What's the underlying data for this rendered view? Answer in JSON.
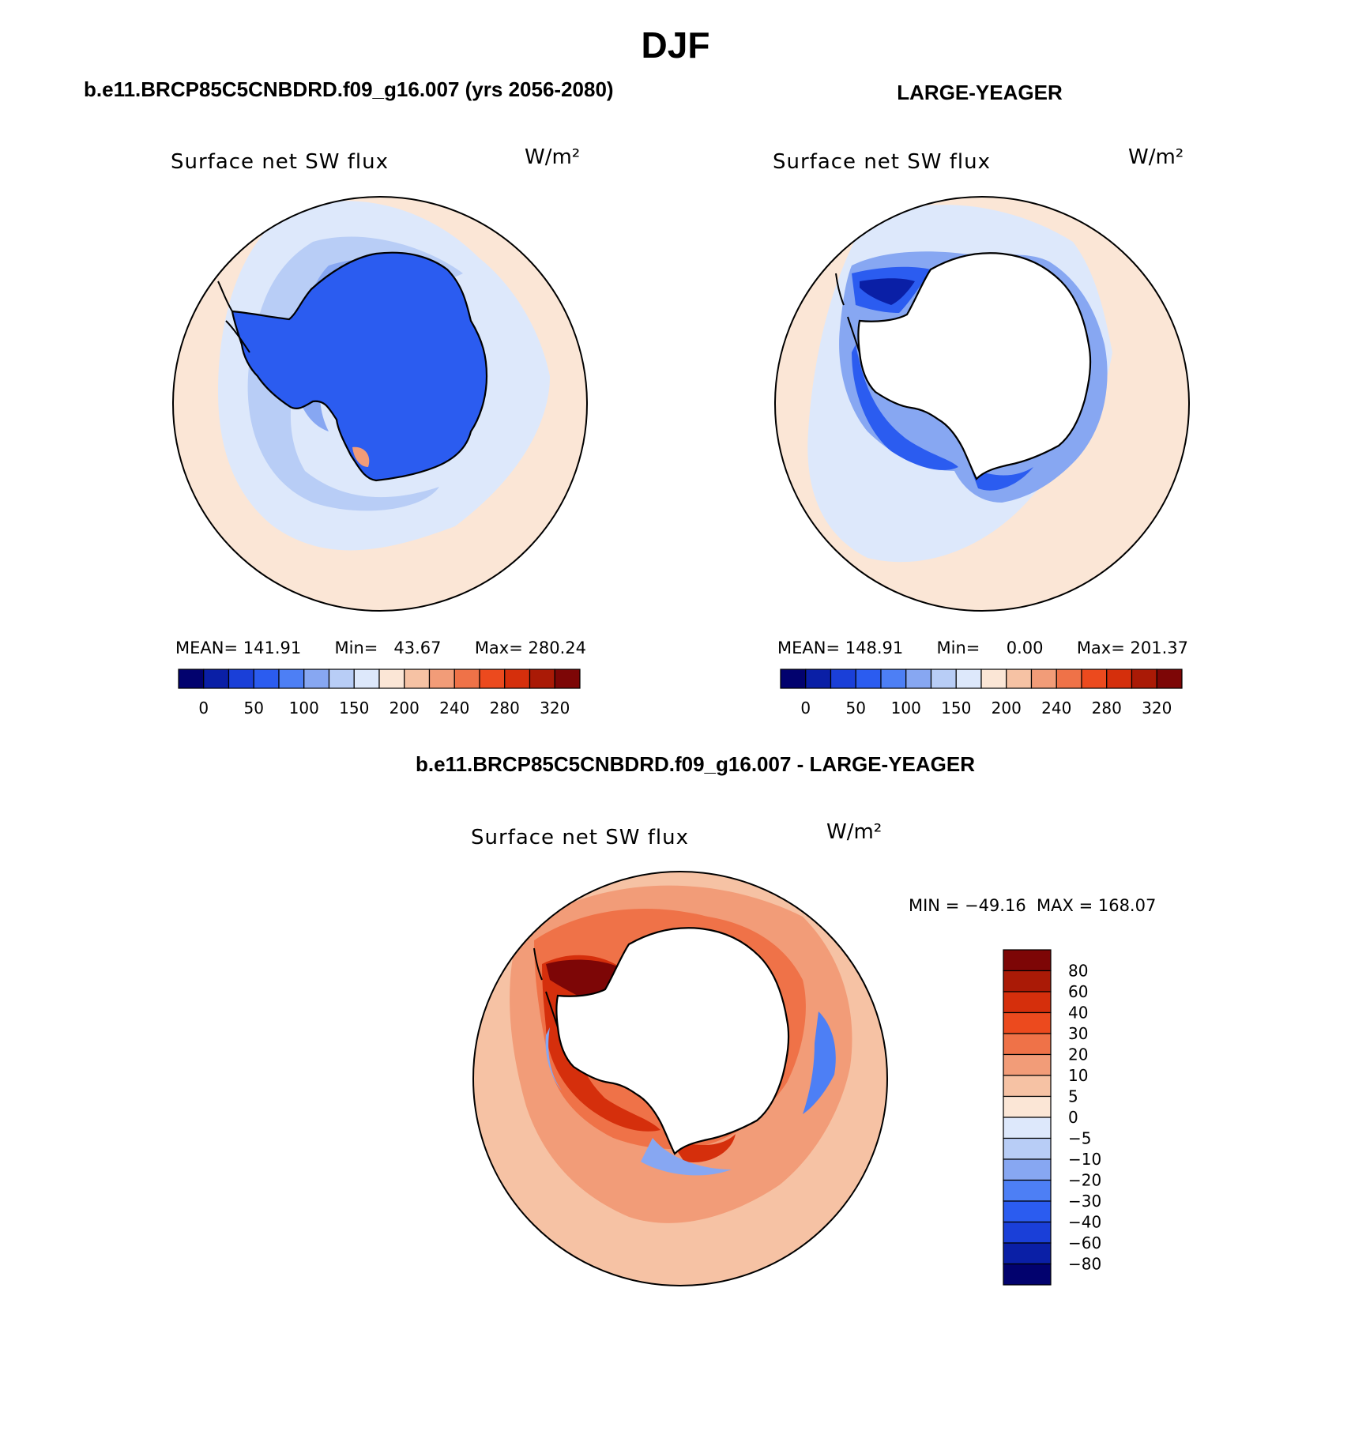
{
  "season_title": "DJF",
  "panels": {
    "case": {
      "heading": "b.e11.BRCP85C5CNBDRD.f09_g16.007 (yrs 2056-2080)",
      "variable": "Surface net SW flux",
      "units": "W/m²",
      "stats": {
        "mean_label": "MEAN=",
        "mean": "141.91",
        "min_label": "Min=",
        "min": "43.67",
        "max_label": "Max=",
        "max": "280.24"
      }
    },
    "obs": {
      "heading": "LARGE-YEAGER",
      "variable": "Surface net SW flux",
      "units": "W/m²",
      "stats": {
        "mean_label": "MEAN=",
        "mean": "148.91",
        "min_label": "Min=",
        "min": "0.00",
        "max_label": "Max=",
        "max": "201.37"
      }
    },
    "diff": {
      "heading": "b.e11.BRCP85C5CNBDRD.f09_g16.007 - LARGE-YEAGER",
      "variable": "Surface net SW flux",
      "units": "W/m²",
      "minmax": "MIN = −49.16  MAX = 168.07"
    }
  },
  "colorbar_abs": {
    "ticks": [
      "0",
      "50",
      "100",
      "150",
      "200",
      "240",
      "280",
      "320"
    ],
    "colors": [
      "#02026e",
      "#0a1fa6",
      "#1a3fd8",
      "#2b5cf0",
      "#4d7ff5",
      "#87a7f2",
      "#b8cdf6",
      "#dde8fb",
      "#fbe6d6",
      "#f6c2a4",
      "#f29c78",
      "#ef7248",
      "#ec4a1e",
      "#d52f0c",
      "#aa1a06",
      "#7d0606"
    ]
  },
  "colorbar_diff": {
    "ticks": [
      "80",
      "60",
      "40",
      "30",
      "20",
      "10",
      "5",
      "0",
      "−5",
      "−10",
      "−20",
      "−30",
      "−40",
      "−60",
      "−80"
    ],
    "colors": [
      "#7d0606",
      "#aa1a06",
      "#d52f0c",
      "#ec4a1e",
      "#ef7248",
      "#f29c78",
      "#f6c2a4",
      "#fbe6d6",
      "#dde8fb",
      "#b8cdf6",
      "#87a7f2",
      "#4d7ff5",
      "#2b5cf0",
      "#1a3fd8",
      "#0a1fa6",
      "#02026e"
    ]
  }
}
